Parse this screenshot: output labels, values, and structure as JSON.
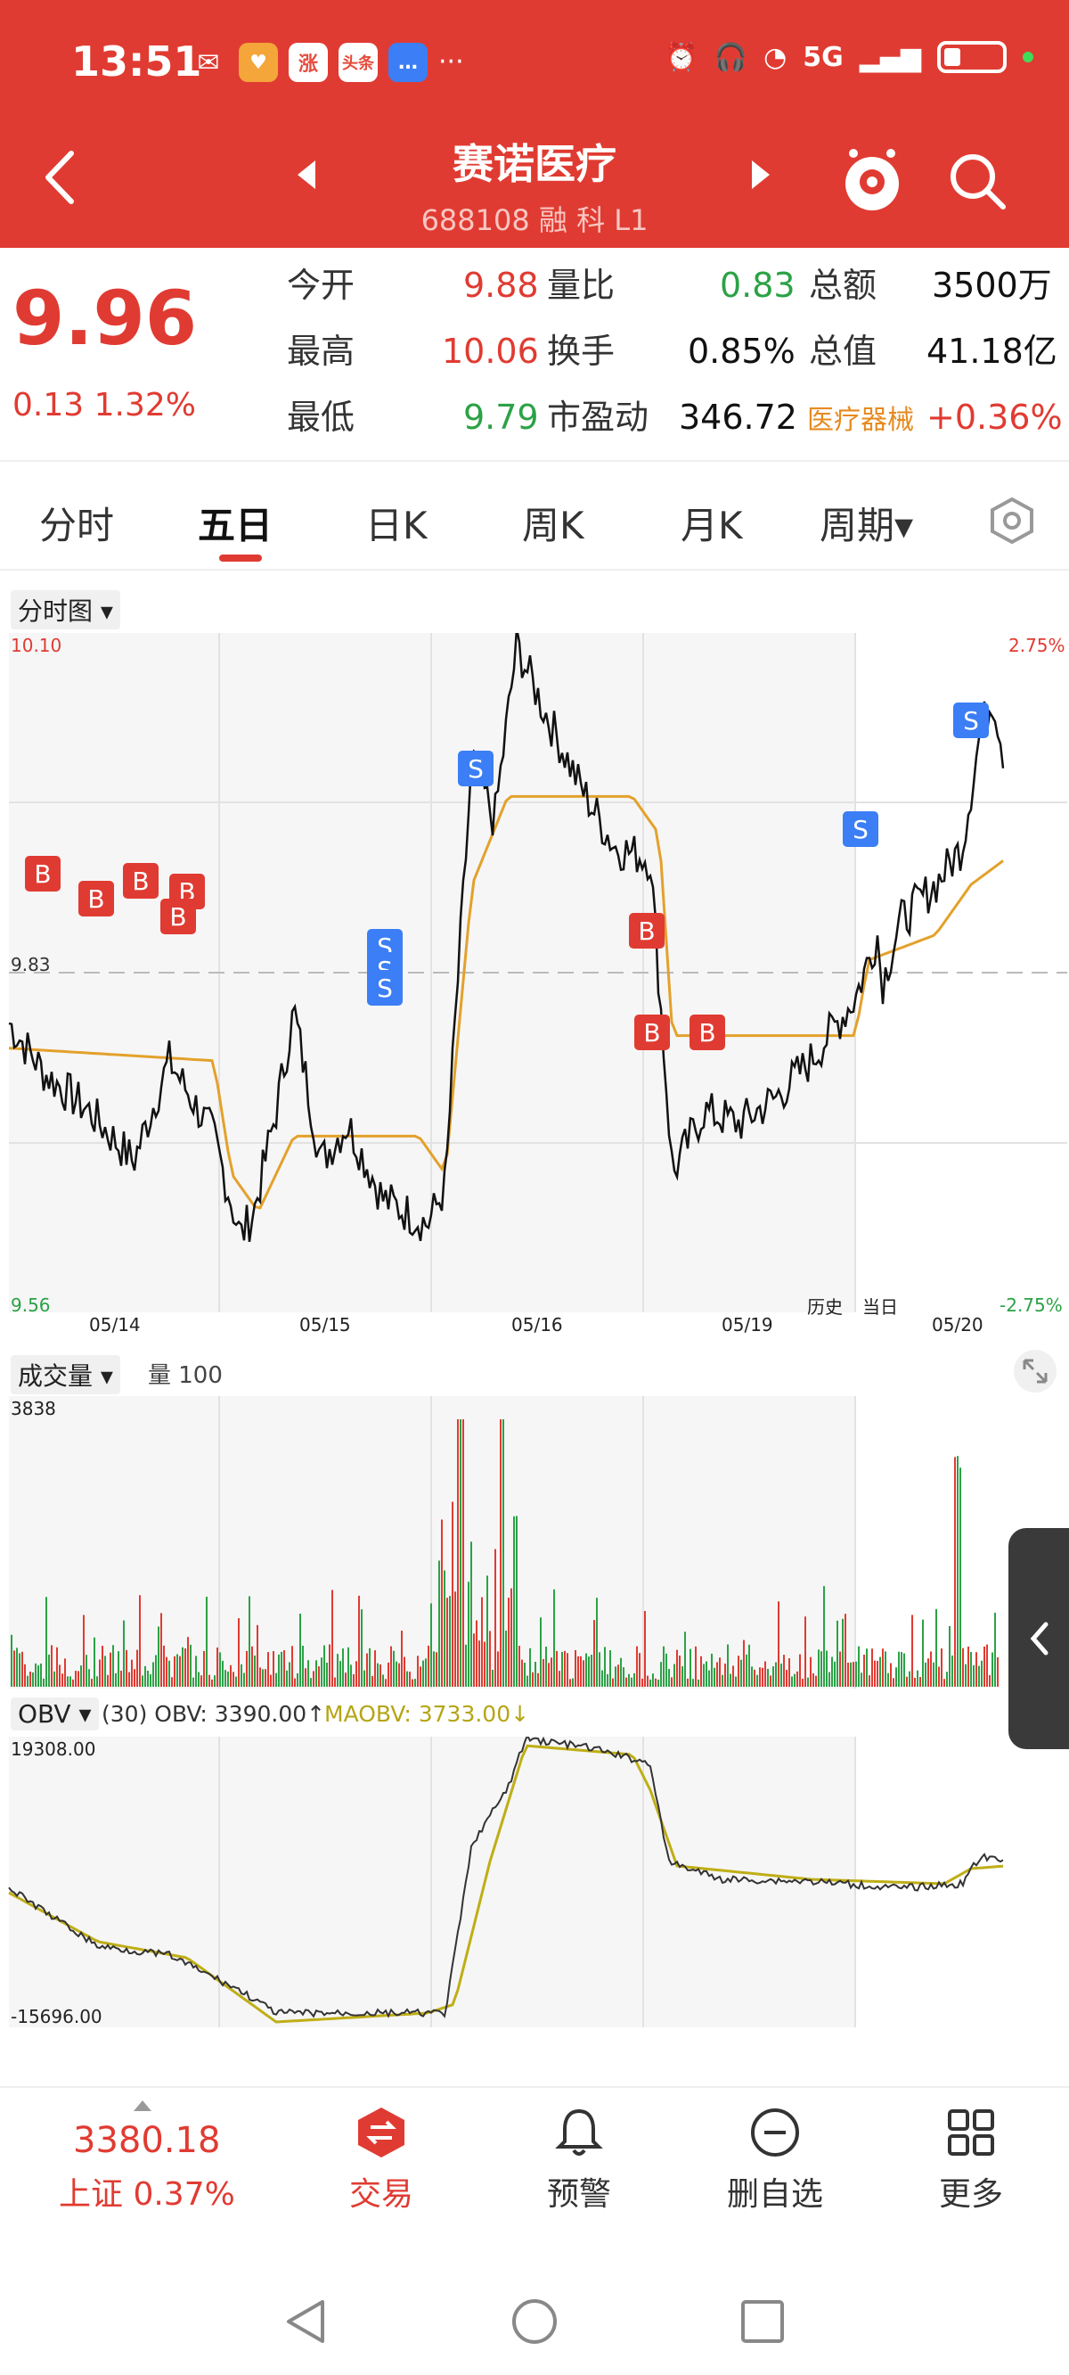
{
  "status_bar": {
    "time": "13:51",
    "apps": [
      {
        "icon": "wechat-icon",
        "text": "",
        "color": "#ffffff"
      },
      {
        "icon": "heart-app-icon",
        "text": "♥",
        "color": "#f4a63a"
      },
      {
        "icon": "zhang-app-icon",
        "text": "涨",
        "color": "#e64b3c"
      },
      {
        "icon": "toutiao-icon",
        "text": "头条",
        "color": "#f04a3e"
      },
      {
        "icon": "message-icon",
        "text": "…",
        "color": "#3b7ef5"
      }
    ],
    "more": "···",
    "network": "5G"
  },
  "header": {
    "stock_name": "赛诺医疗",
    "stock_code": "688108 融 科 L1"
  },
  "quote": {
    "price": "9.96",
    "change": "0.13  1.32%",
    "rows": [
      {
        "l1": "今开",
        "v1": "9.88",
        "l2": "量比",
        "v2": "0.83",
        "l3": "总额",
        "v3": "3500万"
      },
      {
        "l1": "最高",
        "v1": "10.06",
        "l2": "换手",
        "v2": "0.85%",
        "l3": "总值",
        "v3": "41.18亿"
      },
      {
        "l1": "最低",
        "v1": "9.79",
        "l2": "市盈动",
        "v2": "346.72",
        "l3": "医疗器械",
        "v3": "+0.36%"
      }
    ]
  },
  "tabs": [
    {
      "label": "分时",
      "active": false
    },
    {
      "label": "五日",
      "active": true
    },
    {
      "label": "日K",
      "active": false
    },
    {
      "label": "周K",
      "active": false
    },
    {
      "label": "月K",
      "active": false
    },
    {
      "label": "周期▾",
      "active": false
    }
  ],
  "price_chart": {
    "label": "分时图 ▾",
    "y_top": "10.10",
    "y_mid": "9.83",
    "y_bottom": "9.56",
    "pct_top": "2.75%",
    "pct_bottom": "-2.75%",
    "dates": [
      "05/14",
      "05/15",
      "05/16",
      "05/19",
      "05/20"
    ],
    "history_label": "历史",
    "today_label": "当日"
  },
  "volume_chart": {
    "label": "成交量 ▾",
    "sub_label": "量 100",
    "y_top": "3838"
  },
  "obv_chart": {
    "label": "OBV ▾",
    "params": "(30) OBV: 3390.00↑",
    "maobv": "MAOBV: 3733.00↓",
    "y_top": "19308.00",
    "y_bottom": "-15696.00"
  },
  "chart_data": {
    "type": "line",
    "title": "",
    "xlabel": "",
    "ylabel": "",
    "x": [
      "05/14",
      "05/15",
      "05/16",
      "05/19",
      "05/20"
    ],
    "ylim": [
      9.56,
      10.1
    ],
    "series": [
      {
        "values": [
          9.76,
          9.62,
          10.05,
          9.75,
          9.96
        ]
      },
      {
        "values": [
          9.78,
          9.7,
          9.98,
          9.77,
          9.92
        ]
      }
    ],
    "reference_line": 9.83,
    "trade_marks": [
      "B",
      "B",
      "B",
      "B",
      "B",
      "S",
      "S",
      "S",
      "S",
      "B",
      "B",
      "B",
      "S",
      "S"
    ]
  },
  "bottom_nav": {
    "index_value": "3380.18",
    "index_label": "上证 0.37%",
    "items": [
      "交易",
      "预警",
      "删自选",
      "更多"
    ]
  }
}
